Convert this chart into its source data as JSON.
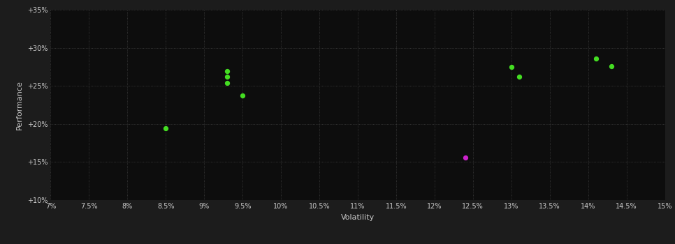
{
  "background_color": "#1c1c1c",
  "plot_bg_color": "#0d0d0d",
  "grid_color": "#404040",
  "text_color": "#cccccc",
  "xlabel": "Volatility",
  "ylabel": "Performance",
  "xlim": [
    0.07,
    0.15
  ],
  "ylim": [
    0.1,
    0.35
  ],
  "xticks": [
    0.07,
    0.075,
    0.08,
    0.085,
    0.09,
    0.095,
    0.1,
    0.105,
    0.11,
    0.115,
    0.12,
    0.125,
    0.13,
    0.135,
    0.14,
    0.145,
    0.15
  ],
  "yticks": [
    0.1,
    0.15,
    0.2,
    0.25,
    0.3,
    0.35
  ],
  "xtick_labels": [
    "7%",
    "7.5%",
    "8%",
    "8.5%",
    "9%",
    "9.5%",
    "10%",
    "10.5%",
    "11%",
    "11.5%",
    "12%",
    "12.5%",
    "13%",
    "13.5%",
    "14%",
    "14.5%",
    "15%"
  ],
  "ytick_labels": [
    "+10%",
    "+15%",
    "+20%",
    "+25%",
    "+30%",
    "+35%"
  ],
  "green_dots": [
    [
      0.085,
      0.194
    ],
    [
      0.093,
      0.269
    ],
    [
      0.093,
      0.262
    ],
    [
      0.093,
      0.254
    ],
    [
      0.095,
      0.237
    ],
    [
      0.13,
      0.275
    ],
    [
      0.131,
      0.262
    ],
    [
      0.141,
      0.286
    ],
    [
      0.143,
      0.276
    ]
  ],
  "magenta_dots": [
    [
      0.124,
      0.156
    ]
  ],
  "dot_size": 18,
  "green_color": "#44dd22",
  "magenta_color": "#cc22cc"
}
